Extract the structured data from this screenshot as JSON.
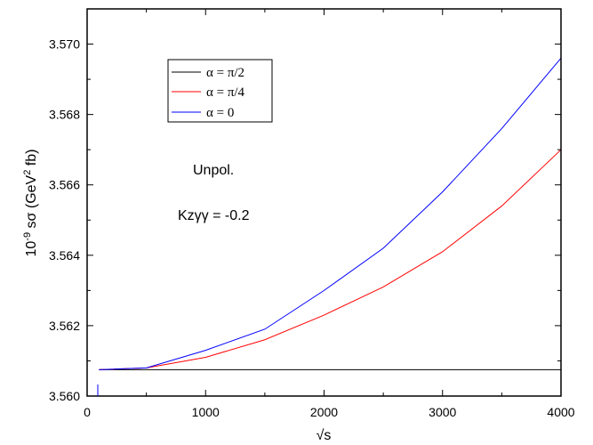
{
  "chart_data": {
    "type": "line",
    "title": "",
    "xlabel": "√s",
    "ylabel_prefix": "10",
    "ylabel_exp": "-9",
    "ylabel_main": " sσ (GeV",
    "ylabel_sup2": "2",
    "ylabel_end": " fb)",
    "xlim": [
      0,
      4000
    ],
    "ylim": [
      3.56,
      3.571
    ],
    "x_ticks": [
      0,
      1000,
      2000,
      3000,
      4000
    ],
    "x_tick_labels": [
      "0",
      "1000",
      "2000",
      "3000",
      "4000"
    ],
    "y_ticks": [
      3.56,
      3.562,
      3.564,
      3.566,
      3.568,
      3.57
    ],
    "y_tick_labels": [
      "3.560",
      "3.562",
      "3.564",
      "3.566",
      "3.568",
      "3.570"
    ],
    "grid": false,
    "legend_position": "top-left",
    "annotations": [
      "Unpol.",
      "Kzγγ = -0.2"
    ],
    "series": [
      {
        "name": "α = π/2",
        "color": "#000000",
        "x": [
          100,
          500,
          1000,
          1500,
          2000,
          2500,
          3000,
          3500,
          4000
        ],
        "values": [
          3.56075,
          3.56075,
          3.56075,
          3.56075,
          3.56075,
          3.56075,
          3.56075,
          3.56075,
          3.56075
        ]
      },
      {
        "name": "α = π/4",
        "color": "#ff0000",
        "x": [
          100,
          500,
          1000,
          1500,
          2000,
          2500,
          3000,
          3500,
          4000
        ],
        "values": [
          3.56075,
          3.5608,
          3.5611,
          3.5616,
          3.5623,
          3.5631,
          3.5641,
          3.5654,
          3.567
        ]
      },
      {
        "name": "α = 0",
        "color": "#0000ff",
        "x": [
          100,
          500,
          1000,
          1500,
          2000,
          2500,
          3000,
          3500,
          4000
        ],
        "values": [
          3.56075,
          3.5608,
          3.5613,
          3.5619,
          3.563,
          3.5642,
          3.5658,
          3.5676,
          3.5696
        ]
      }
    ]
  }
}
